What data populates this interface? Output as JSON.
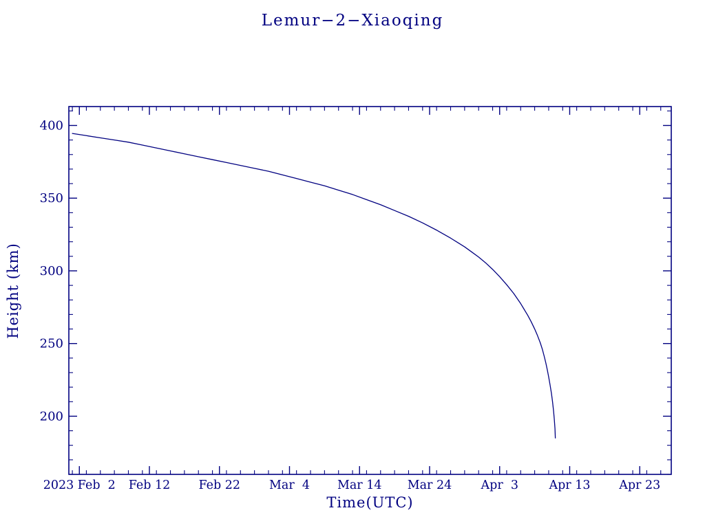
{
  "page": {
    "background": "#ffffff"
  },
  "chart_data": {
    "type": "line",
    "title": "Lemur−2−Xiaoqing",
    "xlabel": "Time(UTC)",
    "ylabel": "Height (km)",
    "line_color": "#000080",
    "axis_color": "#000080",
    "text_color": "#000080",
    "grid": false,
    "legend": "none",
    "x_axis": {
      "unit": "days since 2023 Feb 1",
      "range_days": [
        -0.5,
        85.5
      ],
      "tick_days": [
        1,
        11,
        21,
        31,
        41,
        51,
        61,
        71,
        81
      ],
      "tick_labels": [
        "2023 Feb  2",
        "Feb 12",
        "Feb 22",
        "Mar  4",
        "Mar 14",
        "Mar 24",
        "Apr  3",
        "Apr 13",
        "Apr 23"
      ],
      "minor_step_days": 2
    },
    "y_axis": {
      "range": [
        160,
        413
      ],
      "ticks": [
        200,
        250,
        300,
        350,
        400
      ],
      "tick_labels": [
        "200",
        "250",
        "300",
        "350",
        "400"
      ],
      "minor_step": 10
    },
    "series": [
      {
        "name": "height",
        "x_days": [
          0,
          2,
          4,
          6,
          8,
          10,
          12,
          14,
          16,
          18,
          20,
          22,
          24,
          26,
          28,
          30,
          32,
          34,
          36,
          38,
          40,
          42,
          44,
          46,
          48,
          50,
          52,
          54,
          55,
          56,
          57,
          58,
          59,
          60,
          61,
          62,
          63,
          64,
          64.5,
          65,
          65.5,
          66,
          66.4,
          66.8,
          67.1,
          67.4,
          67.6,
          67.8,
          68.0,
          68.2,
          68.4,
          68.55,
          68.7,
          68.8,
          68.9,
          68.95
        ],
        "values": [
          394.5,
          393,
          391.5,
          390,
          388.5,
          386.5,
          384.5,
          382.5,
          380.5,
          378.5,
          376.5,
          374.5,
          372.5,
          370.5,
          368.5,
          366,
          363.5,
          361,
          358.5,
          355.5,
          352.5,
          349,
          345.5,
          341.5,
          337.5,
          333,
          328,
          322.5,
          319.5,
          316.5,
          313,
          309.5,
          305.5,
          301,
          296,
          290.5,
          284.5,
          277.5,
          273.5,
          269.5,
          265,
          260,
          255.5,
          250.5,
          246,
          240.5,
          236.5,
          232,
          227,
          221.5,
          215.5,
          210,
          203.5,
          198,
          191.5,
          185
        ]
      }
    ]
  }
}
